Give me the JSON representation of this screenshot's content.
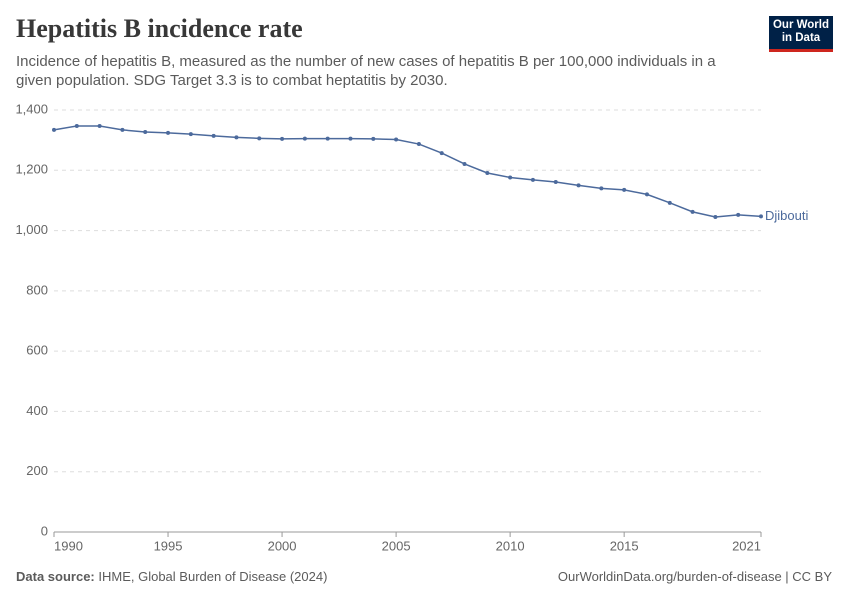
{
  "chart_data": {
    "type": "line",
    "title": "Hepatitis B incidence rate",
    "subtitle": "Incidence of hepatitis B, measured as the number of new cases of hepatitis B per 100,000 individuals in a given population. SDG Target 3.3 is to combat heptatitis by 2030.",
    "logo": [
      "Our World",
      "in Data"
    ],
    "source_label": "Data source:",
    "source": "IHME, Global Burden of Disease (2024)",
    "url": "OurWorldinData.org/burden-of-disease | CC BY",
    "x": [
      1990,
      1991,
      1992,
      1993,
      1994,
      1995,
      1996,
      1997,
      1998,
      1999,
      2000,
      2001,
      2002,
      2003,
      2004,
      2005,
      2006,
      2007,
      2008,
      2009,
      2010,
      2011,
      2012,
      2013,
      2014,
      2015,
      2016,
      2017,
      2018,
      2019,
      2020,
      2021
    ],
    "series": [
      {
        "name": "Djibouti",
        "color": "#4c6a9c",
        "values": [
          1334,
          1347,
          1347,
          1334,
          1327,
          1324,
          1320,
          1314,
          1309,
          1306,
          1304,
          1305,
          1305,
          1305,
          1304,
          1302,
          1287,
          1257,
          1221,
          1191,
          1176,
          1168,
          1161,
          1150,
          1140,
          1135,
          1120,
          1092,
          1062,
          1045,
          1052,
          1047
        ]
      }
    ],
    "xlim": [
      1990,
      2021
    ],
    "xticks": [
      1990,
      1995,
      2000,
      2005,
      2010,
      2015,
      2021
    ],
    "ylim": [
      0,
      1400
    ],
    "yticks": [
      0,
      200,
      400,
      600,
      800,
      {
        "value": 1000,
        "label": "1,000"
      },
      {
        "value": 1200,
        "label": "1,200"
      },
      {
        "value": 1400,
        "label": "1,400"
      }
    ],
    "grid": true
  }
}
